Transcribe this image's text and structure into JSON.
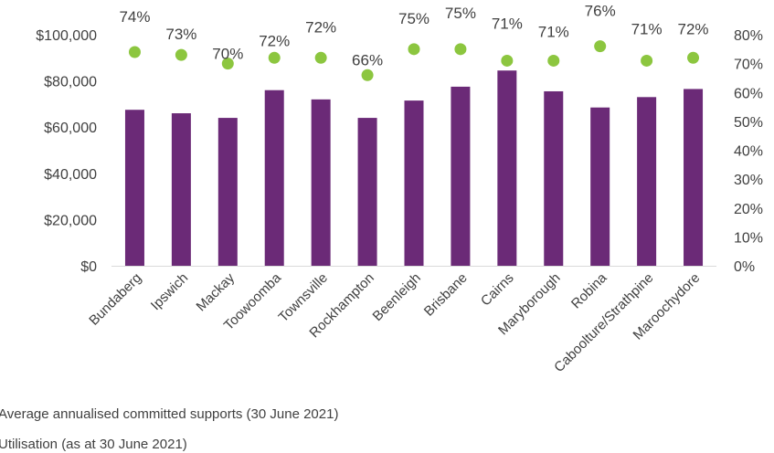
{
  "chart_data": {
    "type": "bar",
    "categories": [
      "Bundaberg",
      "Ipswich",
      "Mackay",
      "Toowoomba",
      "Townsville",
      "Rockhampton",
      "Beenleigh",
      "Brisbane",
      "Cairns",
      "Maryborough",
      "Robina",
      "Caboolture/Strathpine",
      "Maroochydore"
    ],
    "series": [
      {
        "name": "Average annualised committed supports (30 June 2021)",
        "type": "bar",
        "axis": "left",
        "values": [
          67500,
          66000,
          64000,
          76000,
          72000,
          64000,
          71500,
          77500,
          84500,
          75500,
          68500,
          73000,
          76500
        ]
      },
      {
        "name": "Utilisation (as at 30 June 2021)",
        "type": "scatter",
        "axis": "right",
        "values": [
          74,
          73,
          70,
          72,
          72,
          66,
          75,
          75,
          71,
          71,
          76,
          71,
          72
        ],
        "labels": [
          "74%",
          "73%",
          "70%",
          "72%",
          "72%",
          "66%",
          "75%",
          "75%",
          "71%",
          "71%",
          "76%",
          "71%",
          "72%"
        ]
      }
    ],
    "y_left": {
      "ylim": [
        0,
        100000
      ],
      "ticks": [
        0,
        20000,
        40000,
        60000,
        80000,
        100000
      ],
      "tick_labels": [
        "$0",
        "$20,000",
        "$40,000",
        "$60,000",
        "$80,000",
        "$100,000"
      ]
    },
    "y_right": {
      "ylim": [
        0,
        80
      ],
      "ticks": [
        0,
        10,
        20,
        30,
        40,
        50,
        60,
        70,
        80
      ],
      "tick_labels": [
        "0%",
        "10%",
        "20%",
        "30%",
        "40%",
        "50%",
        "60%",
        "70%",
        "80%"
      ]
    },
    "grid": false,
    "legend_position": "bottom-left",
    "colors": {
      "bar": "#6b2a77",
      "dot": "#8cc63f",
      "text": "#404040",
      "axis": "#d9d9d9"
    }
  }
}
